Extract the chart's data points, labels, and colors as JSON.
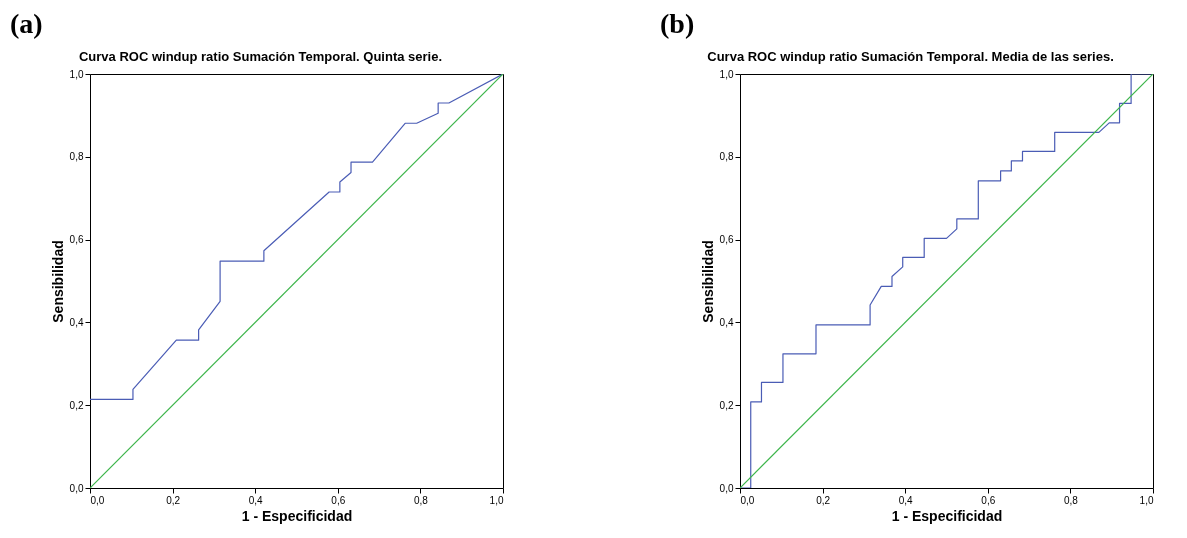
{
  "chart_data": [
    {
      "type": "line",
      "title": "Curva ROC windup ratio Sumación Temporal. Quinta serie.",
      "xlabel": "1 - Especificidad",
      "ylabel": "Sensibilidad",
      "annotations": [
        "(a)"
      ],
      "xlim": [
        0,
        1
      ],
      "ylim": [
        0,
        1
      ],
      "xticks": [
        {
          "value": 0,
          "label": "0,0"
        },
        {
          "value": 0.2,
          "label": "0,2"
        },
        {
          "value": 0.4,
          "label": "0,4"
        },
        {
          "value": 0.6,
          "label": "0,6"
        },
        {
          "value": 0.8,
          "label": "0,8"
        },
        {
          "value": 1,
          "label": "1,0"
        }
      ],
      "yticks": [
        {
          "value": 0,
          "label": "0,0"
        },
        {
          "value": 0.2,
          "label": "0,2"
        },
        {
          "value": 0.4,
          "label": "0,4"
        },
        {
          "value": 0.6,
          "label": "0,6"
        },
        {
          "value": 0.8,
          "label": "0,8"
        },
        {
          "value": 1,
          "label": "1,0"
        }
      ],
      "series": [
        {
          "color": "#4a5cb5",
          "x": [
            0,
            0.104,
            0.104,
            0.209,
            0.263,
            0.263,
            0.315,
            0.315,
            0.421,
            0.421,
            0.579,
            0.605,
            0.605,
            0.632,
            0.632,
            0.684,
            0.763,
            0.791,
            0.843,
            0.843,
            0.869,
            1
          ],
          "values": [
            0.214,
            0.214,
            0.238,
            0.357,
            0.357,
            0.382,
            0.451,
            0.548,
            0.548,
            0.573,
            0.715,
            0.715,
            0.739,
            0.762,
            0.787,
            0.787,
            0.881,
            0.881,
            0.905,
            0.93,
            0.93,
            1
          ]
        },
        {
          "color": "#3cb54a",
          "x": [
            0,
            1
          ],
          "values": [
            0,
            1
          ]
        }
      ]
    },
    {
      "type": "line",
      "title": "Curva ROC windup ratio Sumación Temporal. Media de las series.",
      "xlabel": "1 - Especificidad",
      "ylabel": "Sensibilidad",
      "annotations": [
        "(b)"
      ],
      "xlim": [
        0,
        1
      ],
      "ylim": [
        0,
        1
      ],
      "xticks": [
        {
          "value": 0,
          "label": "0,0"
        },
        {
          "value": 0.2,
          "label": "0,2"
        },
        {
          "value": 0.4,
          "label": "0,4"
        },
        {
          "value": 0.6,
          "label": "0,6"
        },
        {
          "value": 0.8,
          "label": "0,8"
        },
        {
          "value": 1,
          "label": "1,0"
        }
      ],
      "yticks": [
        {
          "value": 0,
          "label": "0,0"
        },
        {
          "value": 0.2,
          "label": "0,2"
        },
        {
          "value": 0.4,
          "label": "0,4"
        },
        {
          "value": 0.6,
          "label": "0,6"
        },
        {
          "value": 0.8,
          "label": "0,8"
        },
        {
          "value": 1,
          "label": "1,0"
        }
      ],
      "series": [
        {
          "color": "#4a5cb5",
          "x": [
            0,
            0.026,
            0.026,
            0.052,
            0.052,
            0.104,
            0.104,
            0.184,
            0.184,
            0.315,
            0.315,
            0.342,
            0.368,
            0.368,
            0.394,
            0.394,
            0.446,
            0.446,
            0.5,
            0.525,
            0.525,
            0.577,
            0.577,
            0.631,
            0.631,
            0.657,
            0.657,
            0.684,
            0.684,
            0.762,
            0.762,
            0.869,
            0.894,
            0.919,
            0.919,
            0.947,
            0.947,
            1
          ],
          "values": [
            0,
            0,
            0.208,
            0.208,
            0.255,
            0.255,
            0.324,
            0.324,
            0.394,
            0.394,
            0.442,
            0.487,
            0.487,
            0.511,
            0.534,
            0.557,
            0.557,
            0.603,
            0.603,
            0.626,
            0.65,
            0.65,
            0.742,
            0.742,
            0.766,
            0.766,
            0.79,
            0.79,
            0.813,
            0.813,
            0.859,
            0.859,
            0.882,
            0.882,
            0.929,
            0.929,
            1,
            1
          ]
        },
        {
          "color": "#3cb54a",
          "x": [
            0,
            1
          ],
          "values": [
            0,
            1
          ]
        }
      ]
    }
  ]
}
